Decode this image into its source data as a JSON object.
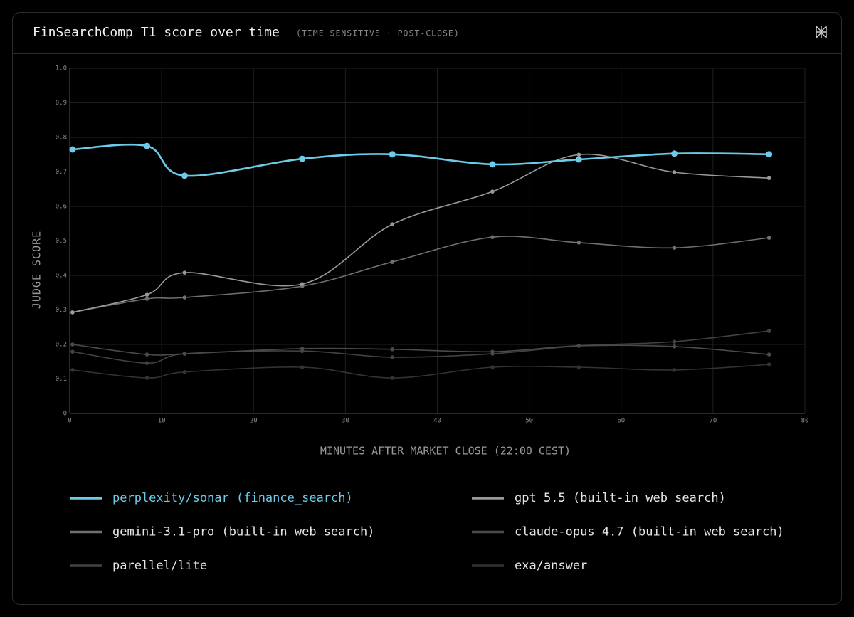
{
  "chart_data": {
    "type": "line",
    "title": "FinSearchComp T1 score over time",
    "subtitle": "(TIME SENSITIVE · POST-CLOSE)",
    "x_label": "MINUTES AFTER MARKET CLOSE (22:00 CEST)",
    "y_label": "JUDGE SCORE",
    "x": [
      0.3,
      8.4,
      12.5,
      25.3,
      35.1,
      46,
      55.4,
      65.8,
      76.1
    ],
    "xlim": [
      0,
      80
    ],
    "xticks": [
      0,
      10,
      20,
      30,
      40,
      50,
      60,
      70,
      80
    ],
    "ylim": [
      0,
      1
    ],
    "yticks": [
      0,
      0.1,
      0.2,
      0.3,
      0.4,
      0.5,
      0.6,
      0.7,
      0.8,
      0.9,
      {
        "value": 1,
        "label": "1.0"
      }
    ],
    "grid": true,
    "series": [
      {
        "name": "perplexity/sonar (finance_search)",
        "color": "#6ccbe8",
        "values": [
          0.765,
          0.775,
          0.689,
          0.738,
          0.751,
          0.722,
          0.736,
          0.753,
          0.751
        ]
      },
      {
        "name": "gpt 5.5 (built-in web search)",
        "color": "#9a9a9a",
        "values": [
          0.293,
          0.344,
          0.408,
          0.375,
          0.548,
          0.643,
          0.75,
          0.699,
          0.682
        ]
      },
      {
        "name": "gemini-3.1-pro (built-in web search)",
        "color": "#707070",
        "values": [
          0.293,
          0.332,
          0.336,
          0.369,
          0.439,
          0.511,
          0.495,
          0.48,
          0.509
        ]
      },
      {
        "name": "claude-opus 4.7 (built-in web search)",
        "color": "#4a4a4a",
        "values": [
          0.2,
          0.171,
          0.173,
          0.188,
          0.186,
          0.179,
          0.196,
          0.194,
          0.171
        ]
      },
      {
        "name": "parellel/lite",
        "color": "#424242",
        "values": [
          0.179,
          0.146,
          0.173,
          0.181,
          0.163,
          0.173,
          0.196,
          0.208,
          0.239
        ]
      },
      {
        "name": "exa/answer",
        "color": "#333333",
        "values": [
          0.126,
          0.103,
          0.12,
          0.134,
          0.103,
          0.134,
          0.134,
          0.126,
          0.142
        ]
      }
    ]
  }
}
